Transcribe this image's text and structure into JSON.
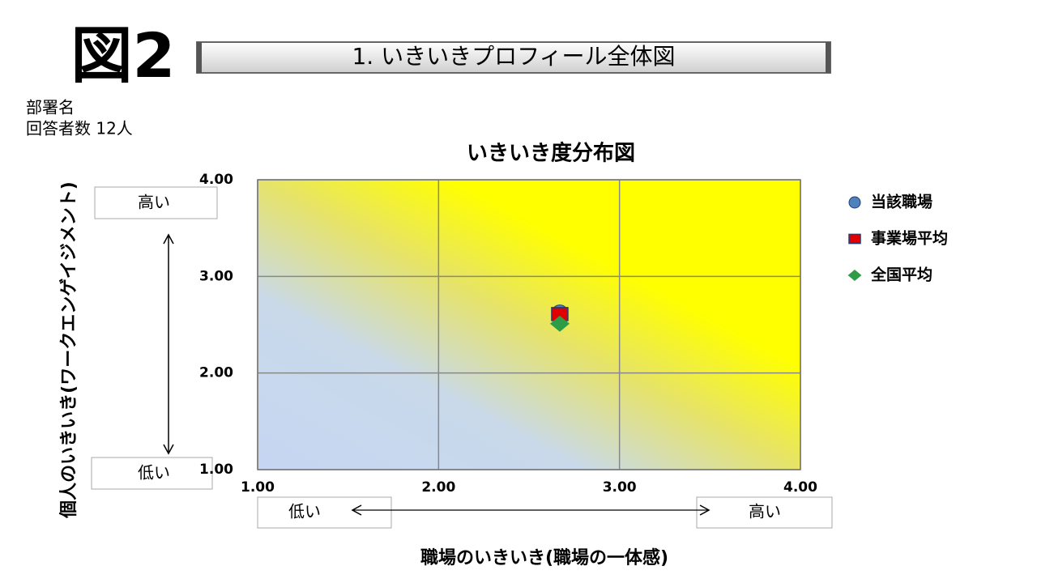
{
  "figure_label": "図2",
  "header": "1. いきいきプロフィール全体図",
  "department": "部署名",
  "respondents": "回答者数 12人",
  "chart_data": {
    "type": "scatter",
    "title": "いきいき度分布図",
    "x_label": "職場のいきいき(職場の一体感)",
    "y_label": "個人のいきいき(ワークエンゲイジメント)",
    "xlim": [
      1,
      4
    ],
    "ylim": [
      1,
      4
    ],
    "xticks": [
      {
        "value": 1,
        "label": "1.00"
      },
      {
        "value": 2,
        "label": "2.00"
      },
      {
        "value": 3,
        "label": "3.00"
      },
      {
        "value": 4,
        "label": "4.00"
      }
    ],
    "yticks": [
      {
        "value": 1,
        "label": "1.00"
      },
      {
        "value": 2,
        "label": "2.00"
      },
      {
        "value": 3,
        "label": "3.00"
      },
      {
        "value": 4,
        "label": "4.00"
      }
    ],
    "grid": true,
    "legend_position": "right",
    "axis_annotations": {
      "x_low": "低い",
      "x_high": "高い",
      "y_low": "低い",
      "y_high": "高い"
    },
    "series": [
      {
        "name": "当該職場",
        "color": "#4f81bd",
        "marker": "circle",
        "x": [
          2.67
        ],
        "values": [
          2.62
        ]
      },
      {
        "name": "事業場平均",
        "color": "#e00000",
        "marker": "square",
        "x": [
          2.67
        ],
        "values": [
          2.61
        ]
      },
      {
        "name": "全国平均",
        "color": "#2e9b47",
        "marker": "diamond",
        "x": [
          2.67
        ],
        "values": [
          2.51
        ]
      }
    ]
  }
}
